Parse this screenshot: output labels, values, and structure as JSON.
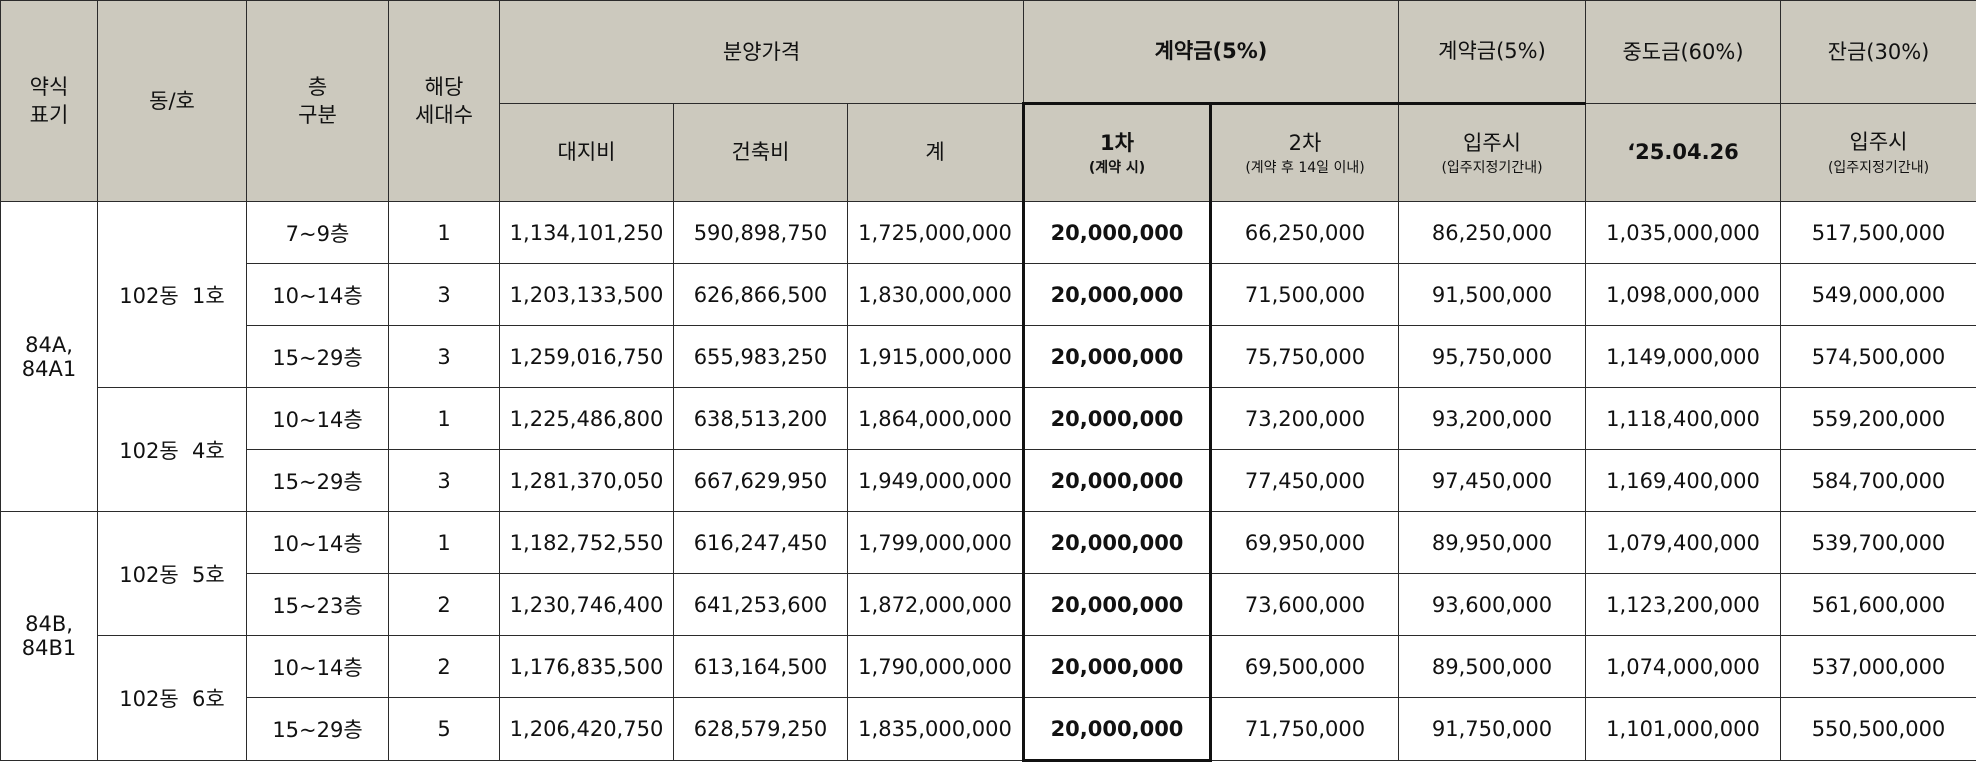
{
  "header": {
    "type_label": "약식\n표기",
    "unit_label": "동/호",
    "floor_label": "층\n구분",
    "households_label": "해당\n세대수",
    "price_group": "분양가격",
    "land_cost": "대지비",
    "build_cost": "건축비",
    "total": "계",
    "deposit_group": "계약금(5%)",
    "first_label": "1차",
    "first_sub": "(계약 시)",
    "second_label": "2차",
    "second_sub": "(계약 후 14일 이내)",
    "deposit2_group": "계약금(5%)",
    "deposit2_label": "입주시",
    "deposit2_sub": "(입주지정기간내)",
    "middle_group": "중도금(60%)",
    "middle_date": "‘25.04.26",
    "balance_group": "잔금(30%)",
    "balance_label": "입주시",
    "balance_sub": "(입주지정기간내)"
  },
  "groups": [
    {
      "type": "84A,\n84A1"
    },
    {
      "type": "84B,\n84B1"
    }
  ],
  "units": [
    "102동  1호",
    "102동  4호",
    "102동  5호",
    "102동  6호"
  ],
  "rows": [
    {
      "floor": "7~9층",
      "households": "1",
      "land": "1,134,101,250",
      "build": "590,898,750",
      "total": "1,725,000,000",
      "first": "20,000,000",
      "second": "66,250,000",
      "deposit2": "86,250,000",
      "middle": "1,035,000,000",
      "balance": "517,500,000"
    },
    {
      "floor": "10~14층",
      "households": "3",
      "land": "1,203,133,500",
      "build": "626,866,500",
      "total": "1,830,000,000",
      "first": "20,000,000",
      "second": "71,500,000",
      "deposit2": "91,500,000",
      "middle": "1,098,000,000",
      "balance": "549,000,000"
    },
    {
      "floor": "15~29층",
      "households": "3",
      "land": "1,259,016,750",
      "build": "655,983,250",
      "total": "1,915,000,000",
      "first": "20,000,000",
      "second": "75,750,000",
      "deposit2": "95,750,000",
      "middle": "1,149,000,000",
      "balance": "574,500,000"
    },
    {
      "floor": "10~14층",
      "households": "1",
      "land": "1,225,486,800",
      "build": "638,513,200",
      "total": "1,864,000,000",
      "first": "20,000,000",
      "second": "73,200,000",
      "deposit2": "93,200,000",
      "middle": "1,118,400,000",
      "balance": "559,200,000"
    },
    {
      "floor": "15~29층",
      "households": "3",
      "land": "1,281,370,050",
      "build": "667,629,950",
      "total": "1,949,000,000",
      "first": "20,000,000",
      "second": "77,450,000",
      "deposit2": "97,450,000",
      "middle": "1,169,400,000",
      "balance": "584,700,000"
    },
    {
      "floor": "10~14층",
      "households": "1",
      "land": "1,182,752,550",
      "build": "616,247,450",
      "total": "1,799,000,000",
      "first": "20,000,000",
      "second": "69,950,000",
      "deposit2": "89,950,000",
      "middle": "1,079,400,000",
      "balance": "539,700,000"
    },
    {
      "floor": "15~23층",
      "households": "2",
      "land": "1,230,746,400",
      "build": "641,253,600",
      "total": "1,872,000,000",
      "first": "20,000,000",
      "second": "73,600,000",
      "deposit2": "93,600,000",
      "middle": "1,123,200,000",
      "balance": "561,600,000"
    },
    {
      "floor": "10~14층",
      "households": "2",
      "land": "1,176,835,500",
      "build": "613,164,500",
      "total": "1,790,000,000",
      "first": "20,000,000",
      "second": "69,500,000",
      "deposit2": "89,500,000",
      "middle": "1,074,000,000",
      "balance": "537,000,000"
    },
    {
      "floor": "15~29층",
      "households": "5",
      "land": "1,206,420,750",
      "build": "628,579,250",
      "total": "1,835,000,000",
      "first": "20,000,000",
      "second": "71,750,000",
      "deposit2": "91,750,000",
      "middle": "1,101,000,000",
      "balance": "550,500,000"
    }
  ]
}
